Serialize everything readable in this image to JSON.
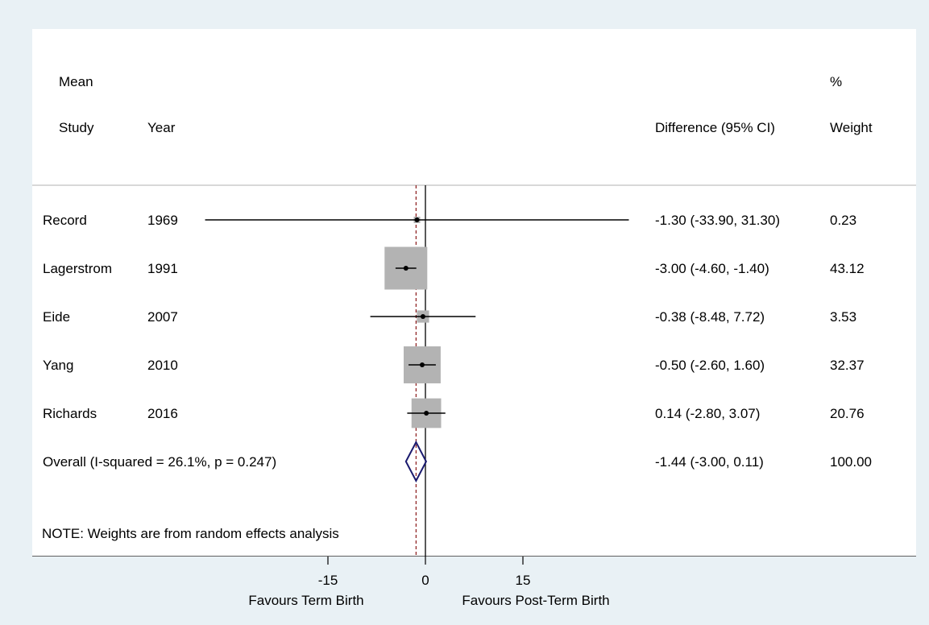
{
  "chart_data": {
    "type": "forest",
    "columns": {
      "study": "Study",
      "year": "Year",
      "effect_line1": "Mean",
      "effect_line2": "Difference (95% CI)",
      "weight_line1": "%",
      "weight_line2": "Weight"
    },
    "studies": [
      {
        "study": "Record",
        "year": "1969",
        "mean": -1.3,
        "lower": -33.9,
        "upper": 31.3,
        "ci_text": "-1.30 (-33.90, 31.30)",
        "weight": 0.23,
        "weight_text": "0.23"
      },
      {
        "study": "Lagerstrom",
        "year": "1991",
        "mean": -3.0,
        "lower": -4.6,
        "upper": -1.4,
        "ci_text": "-3.00 (-4.60, -1.40)",
        "weight": 43.12,
        "weight_text": "43.12"
      },
      {
        "study": "Eide",
        "year": "2007",
        "mean": -0.38,
        "lower": -8.48,
        "upper": 7.72,
        "ci_text": "-0.38 (-8.48, 7.72)",
        "weight": 3.53,
        "weight_text": "3.53"
      },
      {
        "study": "Yang",
        "year": "2010",
        "mean": -0.5,
        "lower": -2.6,
        "upper": 1.6,
        "ci_text": "-0.50 (-2.60, 1.60)",
        "weight": 32.37,
        "weight_text": "32.37"
      },
      {
        "study": "Richards",
        "year": "2016",
        "mean": 0.14,
        "lower": -2.8,
        "upper": 3.07,
        "ci_text": "0.14 (-2.80, 3.07)",
        "weight": 20.76,
        "weight_text": "20.76"
      }
    ],
    "overall": {
      "label": "Overall  (I-squared = 26.1%, p = 0.247)",
      "mean": -1.44,
      "lower": -3.0,
      "upper": 0.11,
      "ci_text": "-1.44 (-3.00, 0.11)",
      "weight_text": "100.00"
    },
    "note": "NOTE: Weights are from random effects analysis",
    "x_ticks": [
      -15,
      0,
      15
    ],
    "x_tick_labels": [
      "-15",
      "0",
      "15"
    ],
    "xlim": [
      -33.9,
      33.9
    ],
    "left_label": "Favours Term Birth",
    "right_label": "Favours Post-Term Birth",
    "colors": {
      "background": "#e9f1f5",
      "panel": "#ffffff",
      "box": "#b3b3b3",
      "diamond": "#1a1a6e",
      "reference_line": "#000000",
      "overall_line": "#8b1a1a"
    }
  }
}
